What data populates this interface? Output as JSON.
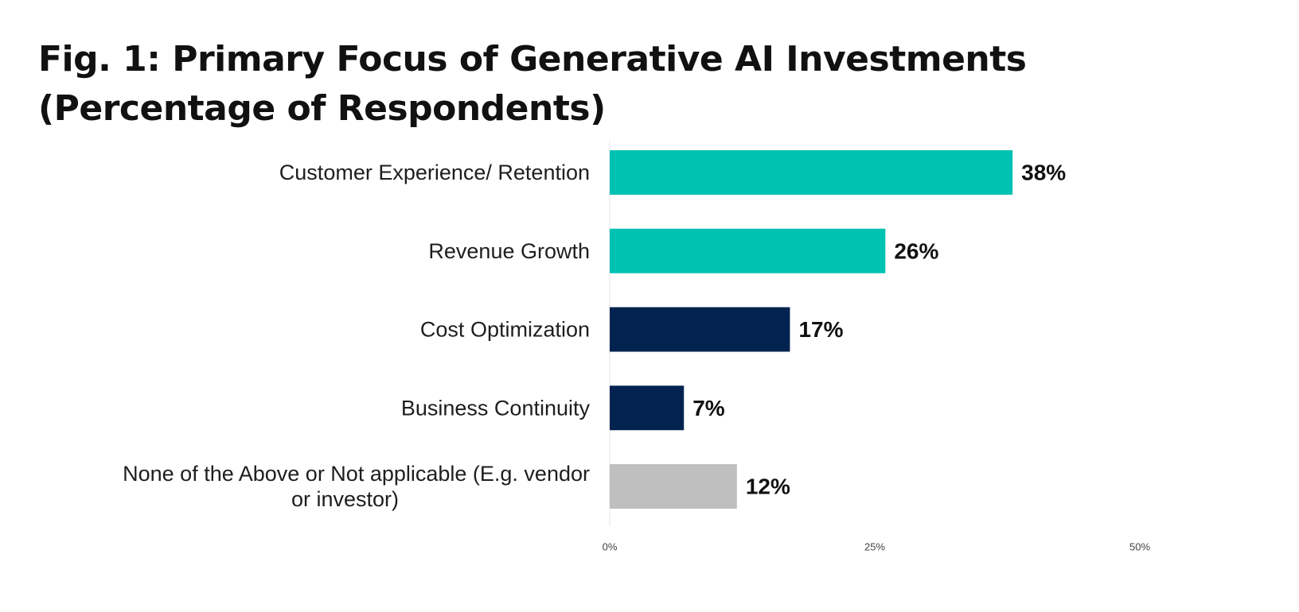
{
  "title": "Fig. 1: Primary Focus of Generative AI Investments (Percentage of Respondents)",
  "chart_data": {
    "type": "bar",
    "orientation": "horizontal",
    "title": "Fig. 1: Primary Focus of Generative AI Investments (Percentage of Respondents)",
    "categories": [
      "Customer Experience/ Retention",
      "Revenue Growth",
      "Cost Optimization",
      "Business Continuity",
      "None of the Above or Not applicable (E.g. vendor or investor)"
    ],
    "category_lines": [
      [
        "Customer Experience/ Retention"
      ],
      [
        "Revenue Growth"
      ],
      [
        "Cost Optimization"
      ],
      [
        "Business Continuity"
      ],
      [
        "None of the Above or Not applicable (E.g. vendor",
        "or investor)"
      ]
    ],
    "values": [
      38,
      26,
      17,
      7,
      12
    ],
    "value_labels": [
      "38%",
      "26%",
      "17%",
      "7%",
      "12%"
    ],
    "colors": [
      "#00c2b2",
      "#00c2b2",
      "#02234f",
      "#02234f",
      "#bfbfbf"
    ],
    "xlim": [
      0,
      50
    ],
    "x_ticks": [
      0,
      25,
      50
    ],
    "x_tick_labels": [
      "0%",
      "25%",
      "50%"
    ],
    "xlabel": "",
    "ylabel": "",
    "grid": false,
    "legend": "none"
  }
}
